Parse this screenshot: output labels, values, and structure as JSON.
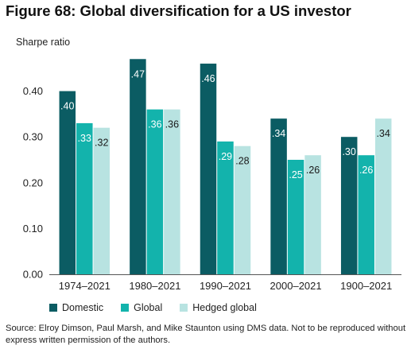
{
  "chart_data": {
    "type": "bar",
    "title": "Figure 68: Global diversification for a US investor",
    "ylabel": "Sharpe ratio",
    "xlabel": "",
    "categories": [
      "1974–2021",
      "1980–2021",
      "1990–2021",
      "2000–2021",
      "1900–2021"
    ],
    "series": [
      {
        "name": "Domestic",
        "color": "#0b5c63",
        "values": [
          0.4,
          0.47,
          0.46,
          0.34,
          0.3
        ],
        "labels": [
          ".40",
          ".47",
          ".46",
          ".34",
          ".30"
        ]
      },
      {
        "name": "Global",
        "color": "#13b3ac",
        "values": [
          0.33,
          0.36,
          0.29,
          0.25,
          0.26
        ],
        "labels": [
          ".33",
          ".36",
          ".29",
          ".25",
          ".26"
        ]
      },
      {
        "name": "Hedged global",
        "color": "#b8e3e1",
        "values": [
          0.32,
          0.36,
          0.28,
          0.26,
          0.34
        ],
        "labels": [
          ".32",
          ".36",
          ".28",
          ".26",
          ".34"
        ]
      }
    ],
    "ylim": [
      0,
      0.5
    ],
    "yticks": [
      0.0,
      0.1,
      0.2,
      0.3,
      0.4
    ],
    "ytick_labels": [
      "0.00",
      "0.10",
      "0.20",
      "0.30",
      "0.40"
    ],
    "grid": false,
    "legend_position": "bottom-left"
  },
  "source": "Source: Elroy Dimson, Paul Marsh, and Mike Staunton using DMS data. Not to be reproduced without express written permission of the authors."
}
